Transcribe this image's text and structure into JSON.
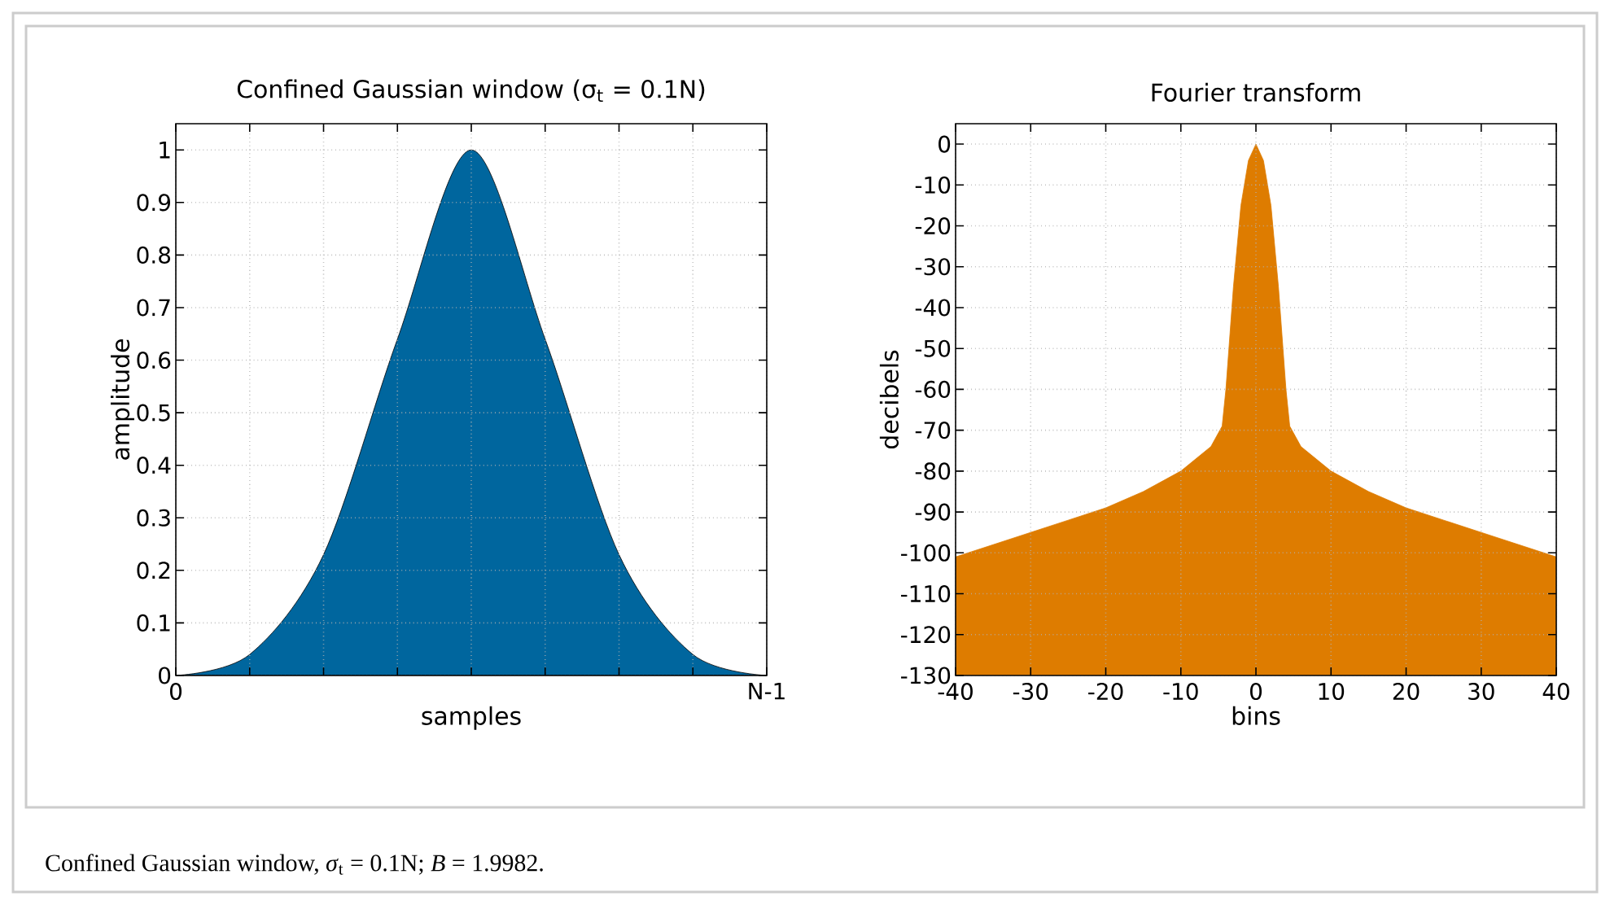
{
  "chart_data": [
    {
      "type": "area",
      "title": "Confined Gaussian window (σ$_{t}$ = 0.1N)",
      "xlabel": "samples",
      "ylabel": "amplitude",
      "categories": [
        "0",
        null,
        null,
        null,
        null,
        null,
        null,
        null,
        "N-1"
      ],
      "values": [
        0,
        0.04,
        0.23,
        0.64,
        1,
        0.64,
        0.23,
        0.04,
        0
      ],
      "color": "#00669e",
      "ylim": [
        0,
        1.05
      ],
      "yticks": [
        0,
        0.1,
        0.2,
        0.3,
        0.4,
        0.5,
        0.6,
        0.7,
        0.8,
        0.9,
        1
      ],
      "grid": true
    },
    {
      "type": "area",
      "title": "Fourier transform",
      "xlabel": "bins",
      "ylabel": "decibels",
      "x": [
        -40,
        -40,
        -35,
        -30,
        -25,
        -20,
        -15,
        -10,
        -6,
        -4.5,
        -4,
        -3,
        -2,
        -1,
        0,
        1,
        2,
        3,
        4,
        4.5,
        6,
        10,
        15,
        20,
        25,
        30,
        35,
        40,
        40
      ],
      "values": [
        -130,
        -101,
        -98,
        -95,
        -92,
        -89,
        -85,
        -80,
        -74,
        -69,
        -60,
        -35,
        -15,
        -4,
        0,
        -4,
        -15,
        -35,
        -60,
        -69,
        -74,
        -80,
        -85,
        -89,
        -92,
        -95,
        -98,
        -101,
        -130
      ],
      "color": "#de7c00",
      "xlim": [
        -40,
        40
      ],
      "ylim": [
        -130,
        5
      ],
      "xticks": [
        -40,
        -30,
        -20,
        -10,
        0,
        10,
        20,
        30,
        40
      ],
      "yticks": [
        -130,
        -120,
        -110,
        -100,
        -90,
        -80,
        -70,
        -60,
        -50,
        -40,
        -30,
        -20,
        -10,
        0
      ],
      "grid": true,
      "annotations": [
        "Confined Gaussian window, *σ*$_{t}$ = 0.1N; *B* = 1.9982."
      ]
    }
  ]
}
